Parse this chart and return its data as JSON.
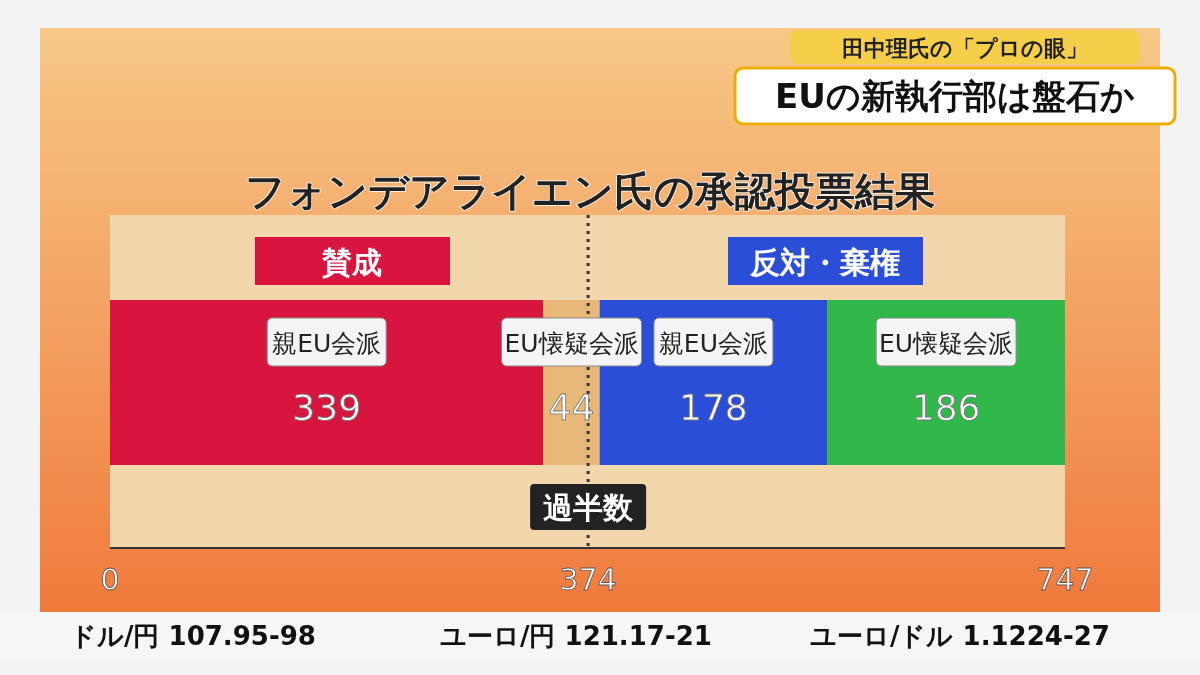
{
  "chart_data": {
    "type": "bar",
    "orientation": "horizontal",
    "stacked": true,
    "title": "フォンデアライエン氏の承認投票結果",
    "categories": [
      null
    ],
    "series": [
      {
        "name": "親EU会派",
        "color": "#d8153f",
        "values": [
          339
        ]
      },
      {
        "name": "EU懐疑会派",
        "color": "#e8b878",
        "values": [
          44
        ]
      },
      {
        "name": "親EU会派",
        "color": "#2a4ed8",
        "values": [
          178
        ]
      },
      {
        "name": "EU懐疑会派",
        "color": "#30b84a",
        "values": [
          186
        ]
      }
    ],
    "data_labels": true,
    "xlim": [
      0,
      747
    ],
    "xticks": [
      0,
      374,
      747
    ],
    "ref_lines": [
      {
        "axis": "x",
        "value": 374,
        "label": "過半数",
        "line_style": "dotted"
      }
    ],
    "annotations": [
      "田中理氏の「プロの眼」",
      "EUの新執行部は盤石か",
      "賛成",
      "反対・棄権",
      "ドル/円 107.95-98",
      "ユーロ/円 121.17-21",
      "ユーロ/ドル 1.1224-27"
    ]
  }
}
